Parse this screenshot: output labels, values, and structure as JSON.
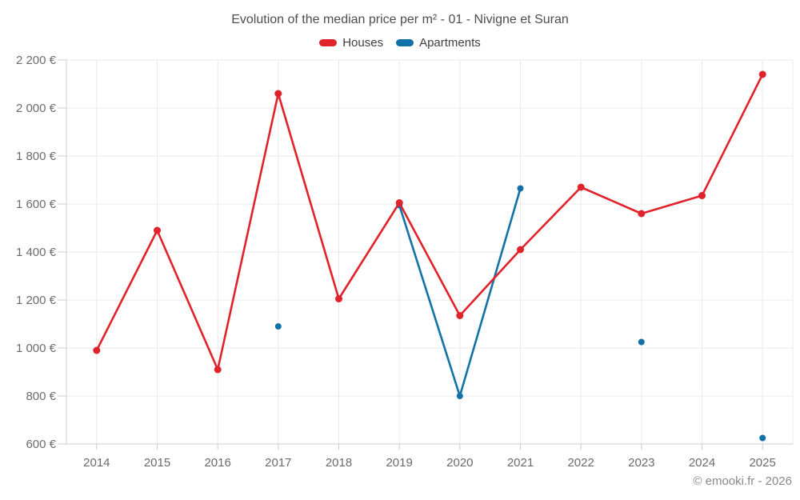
{
  "title": "Evolution of the median price per m² - 01 - Nivigne et Suran",
  "footer": "© emooki.fr - 2026",
  "colors": {
    "houses": "#e0232a",
    "apartments": "#1271a7",
    "grid": "#e9e9e9",
    "axis": "#cccccc",
    "tick_label": "#6b6b6b",
    "title_text": "#4d4d4d",
    "legend_text": "#3f3f3f",
    "footer_text": "#8a8a8a",
    "background": "#ffffff"
  },
  "chart_data": {
    "type": "line",
    "title": "Evolution of the median price per m² - 01 - Nivigne et Suran",
    "categories": [
      "2014",
      "2015",
      "2016",
      "2017",
      "2018",
      "2019",
      "2020",
      "2021",
      "2022",
      "2023",
      "2024",
      "2025"
    ],
    "series": [
      {
        "name": "Houses",
        "color": "#e0232a",
        "values": [
          990,
          1490,
          910,
          2060,
          1205,
          1605,
          1135,
          1410,
          1670,
          1560,
          1635,
          2140
        ]
      },
      {
        "name": "Apartments",
        "color": "#1271a7",
        "values": [
          null,
          null,
          null,
          1090,
          null,
          1595,
          800,
          1665,
          null,
          1025,
          null,
          625
        ]
      }
    ],
    "ylim": [
      600,
      2200
    ],
    "yticks": [
      600,
      800,
      1000,
      1200,
      1400,
      1600,
      1800,
      2000,
      2200
    ],
    "ytick_labels": [
      "600 €",
      "800 €",
      "1 000 €",
      "1 200 €",
      "1 400 €",
      "1 600 €",
      "1 800 €",
      "2 000 €",
      "2 200 €"
    ],
    "ylabel_unit": "€",
    "grid": true,
    "legend_position": "top",
    "note": "Apartments series has isolated points in 2017, 2023, 2025 and a connected segment 2019-2021"
  }
}
